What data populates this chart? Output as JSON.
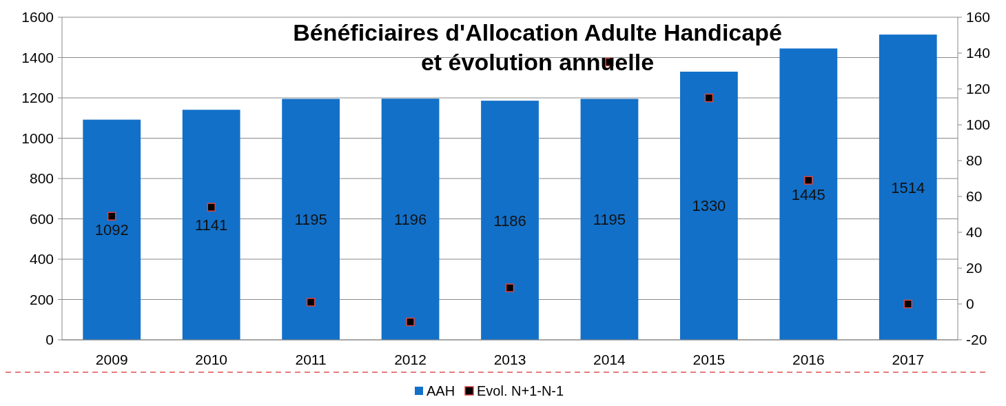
{
  "chart_data": {
    "type": "bar",
    "title": "Bénéficiaires d'Allocation Adulte Handicapé\net évolution annuelle",
    "categories": [
      "2009",
      "2010",
      "2011",
      "2012",
      "2013",
      "2014",
      "2015",
      "2016",
      "2017"
    ],
    "series": [
      {
        "name": "AAH",
        "color": "#1270c8",
        "values": [
          1092,
          1141,
          1195,
          1196,
          1186,
          1195,
          1330,
          1445,
          1514
        ],
        "data_labels": true
      },
      {
        "name": "Evol. N+1-N-1",
        "type": "scatter",
        "axis": "y2",
        "color": "#000000",
        "marker": "square",
        "values": [
          49,
          54,
          1,
          -10,
          9,
          135,
          115,
          69,
          0
        ]
      }
    ],
    "ylim": [
      0,
      1600
    ],
    "yticks": [
      0,
      200,
      400,
      600,
      800,
      1000,
      1200,
      1400,
      1600
    ],
    "y2lim": [
      -20,
      160
    ],
    "y2ticks": [
      -20,
      0,
      20,
      40,
      60,
      80,
      100,
      120,
      140,
      160
    ],
    "grid": "y",
    "legend": "bottom"
  }
}
